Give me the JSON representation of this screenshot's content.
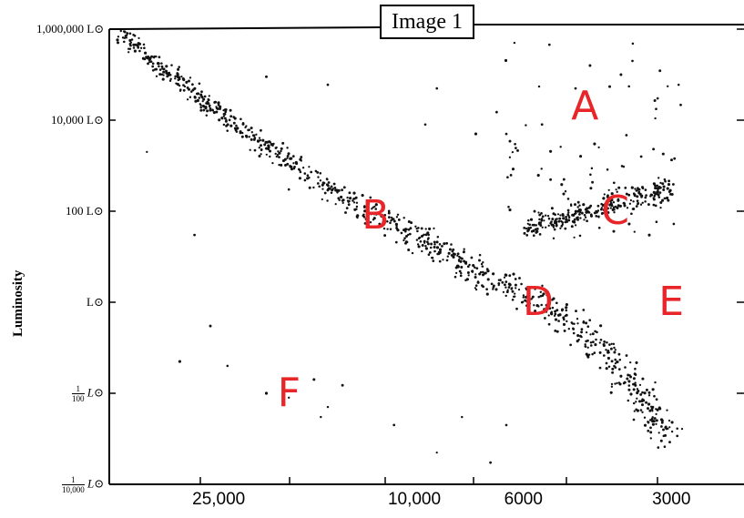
{
  "chart_data": {
    "type": "scatter",
    "title": "Image 1",
    "ylabel": "Luminosity",
    "xlabel": "",
    "x_scale": "log",
    "y_scale": "log",
    "x_reversed": true,
    "y_ticks": [
      {
        "value": 1000000,
        "label": "1,000,000 L⊙"
      },
      {
        "value": 10000,
        "label": "10,000 L⊙"
      },
      {
        "value": 100,
        "label": "100 L⊙"
      },
      {
        "value": 1,
        "label": "L⊙"
      },
      {
        "value": 0.01,
        "num": "1",
        "den": "100",
        "unit": "L⊙"
      },
      {
        "value": 0.0001,
        "num": "1",
        "den": "10,000",
        "unit": "L⊙"
      }
    ],
    "x_ticks": [
      {
        "value": 25000,
        "label": "25,000"
      },
      {
        "value": 10000,
        "label": "10,000"
      },
      {
        "value": 6000,
        "label": "6000"
      },
      {
        "value": 3000,
        "label": "3000"
      }
    ],
    "regions": [
      {
        "label": "A",
        "desc_x": 4500,
        "desc_y": 20000
      },
      {
        "label": "B",
        "desc_x": 12000,
        "desc_y": 80
      },
      {
        "label": "C",
        "desc_x": 3900,
        "desc_y": 100
      },
      {
        "label": "D",
        "desc_x": 5600,
        "desc_y": 1
      },
      {
        "label": "E",
        "desc_x": 3000,
        "desc_y": 1
      },
      {
        "label": "F",
        "desc_x": 18000,
        "desc_y": 0.01
      }
    ],
    "main_sequence": [
      {
        "t": 40000,
        "l": 800000
      },
      {
        "t": 25000,
        "l": 15000
      },
      {
        "t": 15000,
        "l": 300
      },
      {
        "t": 10000,
        "l": 30
      },
      {
        "t": 7000,
        "l": 3
      },
      {
        "t": 5500,
        "l": 1
      },
      {
        "t": 4500,
        "l": 0.2
      },
      {
        "t": 3500,
        "l": 0.01
      },
      {
        "t": 3000,
        "l": 0.0008
      }
    ],
    "giant_branch": [
      {
        "t": 6000,
        "l": 40
      },
      {
        "t": 4500,
        "l": 100
      },
      {
        "t": 3500,
        "l": 200
      },
      {
        "t": 3000,
        "l": 300
      }
    ],
    "supergiants": [
      {
        "t": 4700,
        "l": 50000
      },
      {
        "t": 3800,
        "l": 100000
      },
      {
        "t": 3200,
        "l": 30000
      },
      {
        "t": 5500,
        "l": 8000
      },
      {
        "t": 6500,
        "l": 5000
      },
      {
        "t": 4300,
        "l": 3000
      },
      {
        "t": 3600,
        "l": 200000
      },
      {
        "t": 2900,
        "l": 60000
      },
      {
        "t": 15000,
        "l": 60000
      },
      {
        "t": 20000,
        "l": 90000
      },
      {
        "t": 9000,
        "l": 50000
      },
      {
        "t": 6800,
        "l": 15000
      }
    ],
    "white_dwarfs": [
      {
        "t": 20000,
        "l": 0.01
      },
      {
        "t": 16000,
        "l": 0.02
      },
      {
        "t": 15000,
        "l": 0.005
      },
      {
        "t": 14000,
        "l": 0.015
      },
      {
        "t": 18000,
        "l": 0.008
      },
      {
        "t": 15500,
        "l": 0.003
      }
    ],
    "scattered": [
      {
        "t": 28000,
        "l": 30
      },
      {
        "t": 24000,
        "l": 0.04
      },
      {
        "t": 30000,
        "l": 0.05
      },
      {
        "t": 26000,
        "l": 0.3
      },
      {
        "t": 8000,
        "l": 0.003
      },
      {
        "t": 11000,
        "l": 0.002
      },
      {
        "t": 9000,
        "l": 0.0005
      },
      {
        "t": 7000,
        "l": 0.0003
      },
      {
        "t": 6500,
        "l": 0.002
      },
      {
        "t": 9500,
        "l": 8000
      },
      {
        "t": 7500,
        "l": 5000
      },
      {
        "t": 35000,
        "l": 2000
      },
      {
        "t": 18000,
        "l": 300
      }
    ]
  }
}
